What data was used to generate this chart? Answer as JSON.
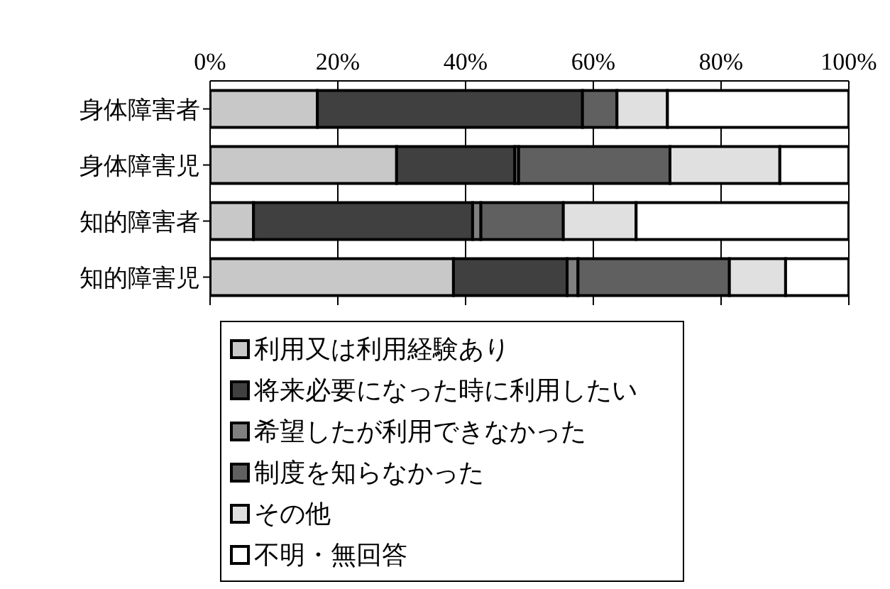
{
  "chart_data": {
    "type": "bar",
    "orientation": "horizontal",
    "stacked": true,
    "categories": [
      "身体障害者",
      "身体障害児",
      "知的障害者",
      "知的障害児"
    ],
    "series": [
      {
        "name": "利用又は利用経験あり",
        "color": "#c8c8c8",
        "values": [
          16.8,
          29.2,
          6.8,
          38.1
        ]
      },
      {
        "name": "将来必要になった時に利用したい",
        "color": "#404040",
        "values": [
          41.5,
          18.5,
          34.3,
          17.8
        ]
      },
      {
        "name": "希望したが利用できなかった",
        "color": "#808080",
        "values": [
          0,
          0.6,
          1.3,
          1.7
        ]
      },
      {
        "name": "制度を知らなかった",
        "color": "#606060",
        "values": [
          5.4,
          23.7,
          12.9,
          23.7
        ]
      },
      {
        "name": "その他",
        "color": "#e0e0e0",
        "values": [
          7.9,
          17.2,
          11.4,
          8.8
        ]
      },
      {
        "name": "不明・無回答",
        "color": "#ffffff",
        "values": [
          28.4,
          10.8,
          33.3,
          9.9
        ]
      }
    ],
    "xlim": [
      0,
      100
    ],
    "xticks": [
      {
        "value": 0,
        "label": "0%"
      },
      {
        "value": 20,
        "label": "20%"
      },
      {
        "value": 40,
        "label": "40%"
      },
      {
        "value": 60,
        "label": "60%"
      },
      {
        "value": 80,
        "label": "80%"
      },
      {
        "value": 100,
        "label": "100%"
      }
    ],
    "grid": "x",
    "legend": "bottom"
  }
}
